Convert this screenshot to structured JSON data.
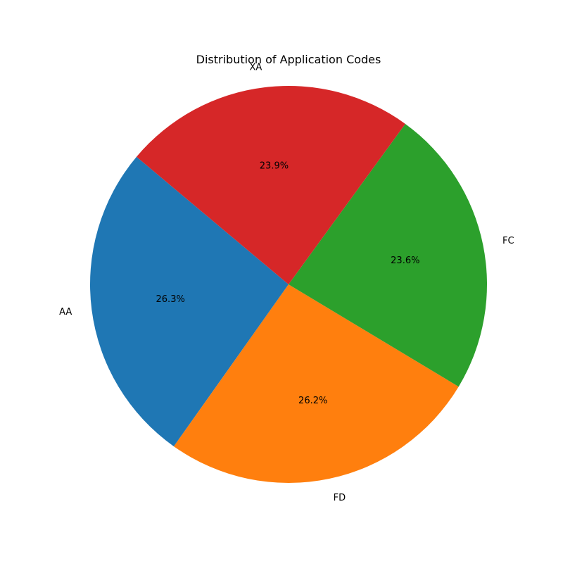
{
  "chart_data": {
    "type": "pie",
    "title": "Distribution of Application Codes",
    "categories": [
      "AA",
      "FD",
      "FC",
      "XA"
    ],
    "values": [
      26.3,
      26.2,
      23.6,
      23.9
    ],
    "percent_labels": [
      "26.3%",
      "26.2%",
      "23.6%",
      "23.9%"
    ],
    "colors": [
      "#1f77b4",
      "#ff7f0e",
      "#2ca02c",
      "#d62728"
    ],
    "start_angle_deg": 140,
    "direction": "counterclockwise",
    "legend": "none"
  }
}
